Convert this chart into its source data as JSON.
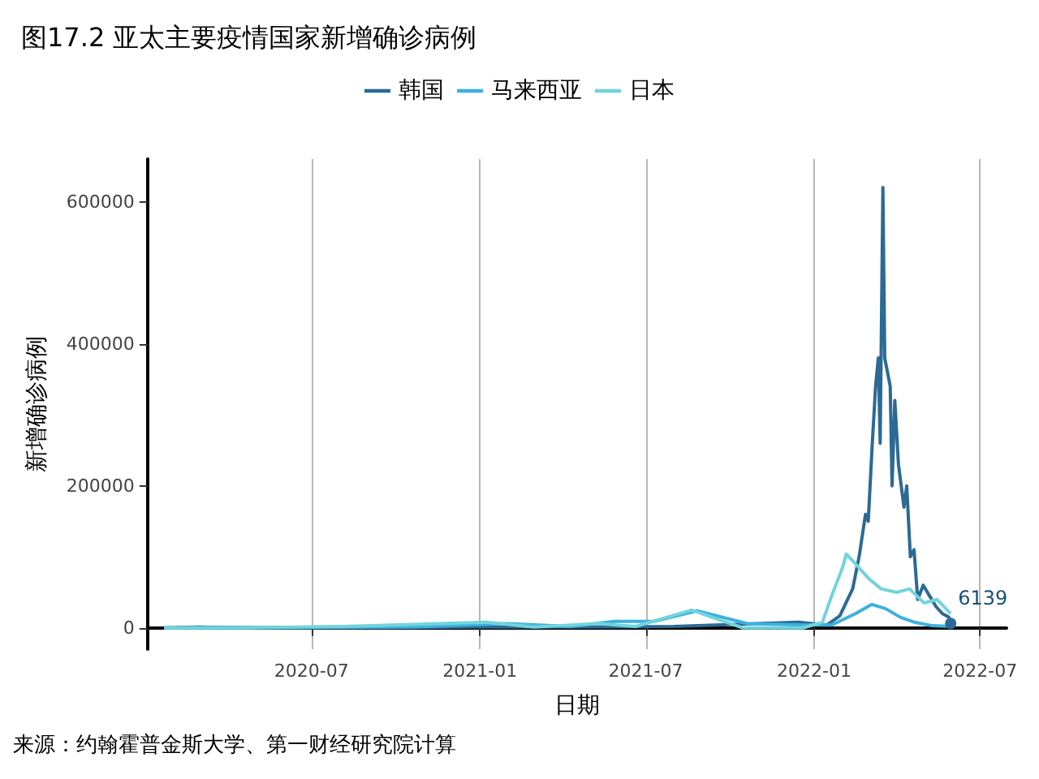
{
  "chart_data": {
    "type": "line",
    "title": "图17.2 亚太主要疫情国家新增确诊病例",
    "xlabel": "日期",
    "ylabel": "新增确诊病例",
    "annotations": [
      "来源：约翰霍普金斯大学、第一财经研究院计算"
    ],
    "legend": "top",
    "grid": "x",
    "marker": "none",
    "line_style": "solid",
    "xlim": [
      "2020-01-04",
      "2022-07-30"
    ],
    "xticks": [
      "2020-07",
      "2021-01",
      "2021-07",
      "2022-01",
      "2022-07"
    ],
    "ylim": [
      -30000,
      660000
    ],
    "yticks": [
      0,
      200000,
      400000,
      600000
    ],
    "series": [
      {
        "name": "韩国",
        "color": "#2b6a94",
        "x": [
          "2020-01-22",
          "2020-03-01",
          "2020-06-01",
          "2020-12-25",
          "2021-04-01",
          "2021-08-01",
          "2021-12-15",
          "2022-01-15",
          "2022-01-29",
          "2022-02-05",
          "2022-02-12",
          "2022-02-19",
          "2022-02-26",
          "2022-03-01",
          "2022-03-05",
          "2022-03-09",
          "2022-03-12",
          "2022-03-14",
          "2022-03-17",
          "2022-03-19",
          "2022-03-22",
          "2022-03-25",
          "2022-03-27",
          "2022-03-30",
          "2022-04-03",
          "2022-04-06",
          "2022-04-09",
          "2022-04-12",
          "2022-04-16",
          "2022-04-20",
          "2022-04-24",
          "2022-04-30",
          "2022-05-07",
          "2022-05-14",
          "2022-05-21",
          "2022-05-28",
          "2022-05-30"
        ],
        "values": [
          0,
          1000,
          0,
          1000,
          1000,
          2000,
          8000,
          4000,
          17000,
          36000,
          55000,
          100000,
          160000,
          150000,
          250000,
          340000,
          380000,
          260000,
          620000,
          380000,
          360000,
          340000,
          200000,
          320000,
          230000,
          200000,
          170000,
          200000,
          100000,
          110000,
          40000,
          60000,
          45000,
          30000,
          20000,
          15000,
          6139
        ],
        "value_labels": [
          null,
          null,
          null,
          null,
          null,
          null,
          null,
          null,
          null,
          null,
          null,
          null,
          null,
          null,
          null,
          null,
          null,
          null,
          null,
          null,
          null,
          null,
          null,
          null,
          null,
          null,
          null,
          null,
          null,
          null,
          null,
          null,
          null,
          null,
          null,
          null,
          "6139"
        ]
      },
      {
        "name": "马来西亚",
        "color": "#3db1e0",
        "x": [
          "2020-01-22",
          "2020-10-15",
          "2021-01-30",
          "2021-04-10",
          "2021-05-28",
          "2021-07-10",
          "2021-08-26",
          "2021-10-20",
          "2021-12-20",
          "2022-01-20",
          "2022-02-15",
          "2022-03-05",
          "2022-03-20",
          "2022-04-05",
          "2022-04-20",
          "2022-05-10",
          "2022-05-30"
        ],
        "values": [
          0,
          1000,
          6000,
          2000,
          9000,
          9000,
          24000,
          6000,
          4000,
          4000,
          20000,
          33000,
          27000,
          15000,
          8000,
          3000,
          2000
        ]
      },
      {
        "name": "日本",
        "color": "#72d4dc",
        "x": [
          "2020-01-22",
          "2020-04-15",
          "2020-08-05",
          "2021-01-08",
          "2021-03-01",
          "2021-05-10",
          "2021-06-20",
          "2021-08-20",
          "2021-10-15",
          "2021-12-20",
          "2022-01-10",
          "2022-01-20",
          "2022-02-01",
          "2022-02-05",
          "2022-02-15",
          "2022-03-01",
          "2022-03-15",
          "2022-04-01",
          "2022-04-15",
          "2022-05-01",
          "2022-05-15",
          "2022-05-30"
        ],
        "values": [
          0,
          0,
          2000,
          8000,
          1000,
          6000,
          2000,
          25000,
          0,
          0,
          8000,
          45000,
          85000,
          104000,
          90000,
          70000,
          55000,
          50000,
          55000,
          35000,
          40000,
          20000
        ]
      }
    ]
  }
}
